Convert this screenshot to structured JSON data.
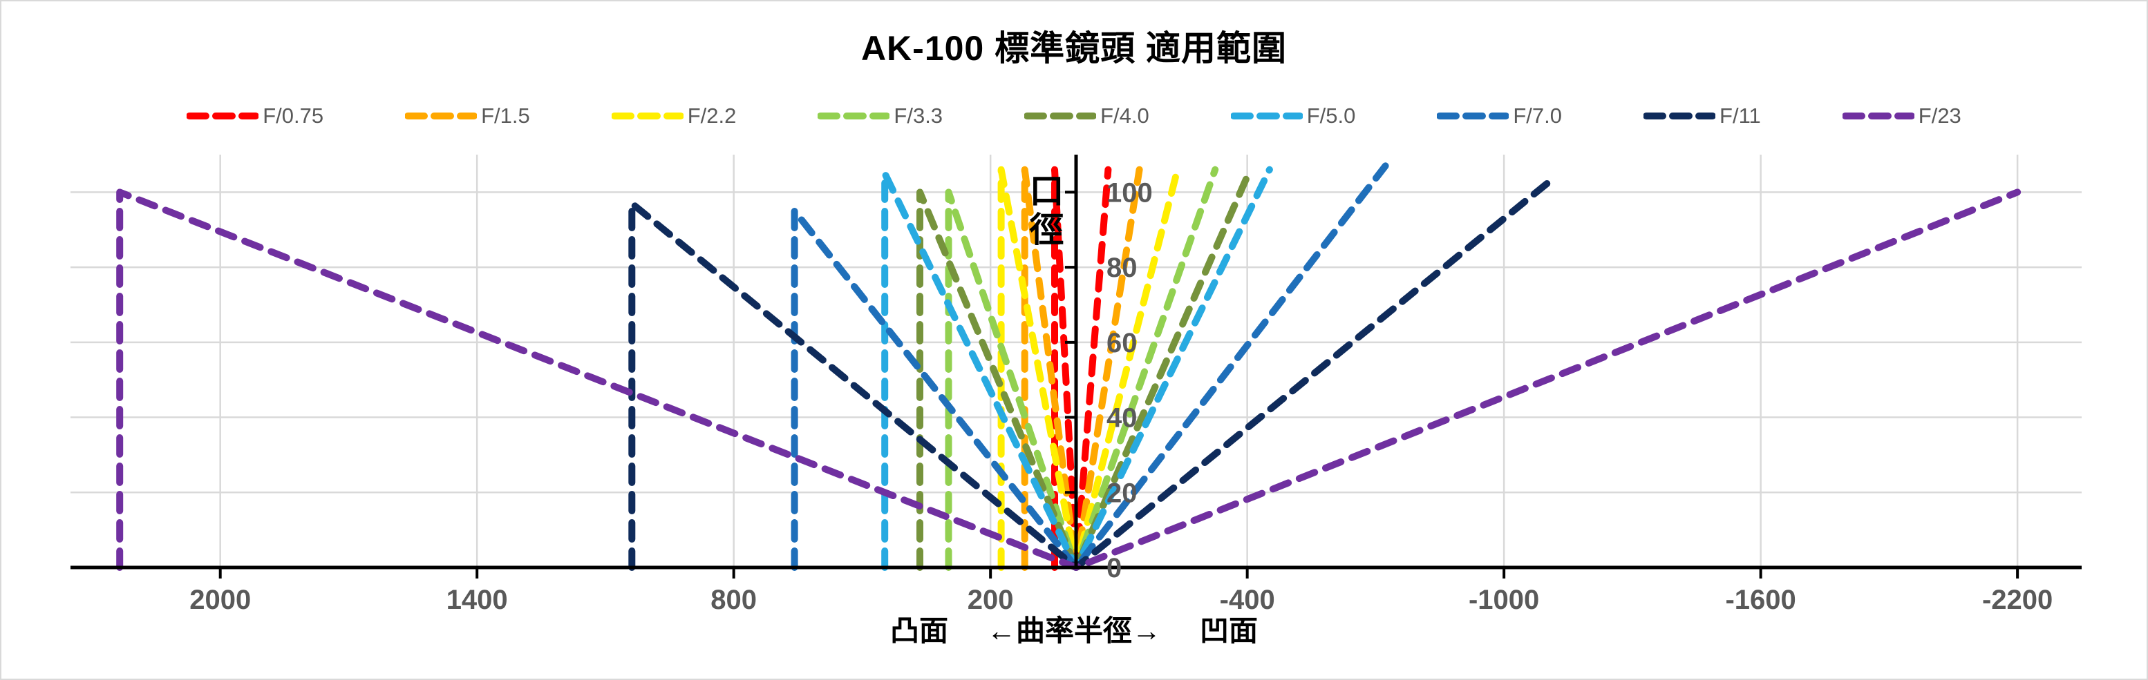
{
  "title": "AK-100 標準鏡頭 適用範圍",
  "y_axis_title": "口徑",
  "x_axis_caption": {
    "left": "凸面",
    "center": "←曲率半徑→",
    "right": "凹面"
  },
  "colors": {
    "grid": "#d9d9d9",
    "axis": "#000000",
    "tick_text": "#595959",
    "background": "#ffffff"
  },
  "chart_data": {
    "type": "line",
    "title": "AK-100 標準鏡頭 適用範圍",
    "xlabel": "凸面 ←曲率半徑→ 凹面",
    "ylabel": "口徑",
    "x_axis": {
      "reversed": true,
      "range": [
        2350,
        -2350
      ],
      "tick_values": [
        2000,
        1400,
        800,
        200,
        -400,
        -1000,
        -1600,
        -2200
      ],
      "tick_labels": [
        "2000",
        "1400",
        "800",
        "200",
        "-400",
        "-1000",
        "-1600",
        "-2200"
      ]
    },
    "y_axis": {
      "range": [
        0,
        110
      ],
      "tick_values": [
        0,
        20,
        40,
        60,
        80,
        100
      ],
      "tick_labels": [
        "0",
        "20",
        "40",
        "60",
        "80",
        "100"
      ]
    },
    "grid": true,
    "legend_position": "top",
    "line_style": "dashed",
    "series": [
      {
        "name": "F/0.75",
        "color": "#ff0000",
        "points": [
          [
            50,
            0
          ],
          [
            50,
            106
          ],
          [
            0,
            0
          ],
          [
            -75,
            106
          ]
        ]
      },
      {
        "name": "F/1.5",
        "color": "#ffa800",
        "points": [
          [
            120,
            0
          ],
          [
            120,
            106
          ],
          [
            0,
            0
          ],
          [
            -148,
            106
          ]
        ]
      },
      {
        "name": "F/2.2",
        "color": "#ffee00",
        "points": [
          [
            175,
            0
          ],
          [
            175,
            106
          ],
          [
            0,
            0
          ],
          [
            -237,
            106
          ]
        ]
      },
      {
        "name": "F/3.3",
        "color": "#92d050",
        "points": [
          [
            298,
            0
          ],
          [
            298,
            100
          ],
          [
            0,
            0
          ],
          [
            -325,
            106
          ]
        ]
      },
      {
        "name": "F/4.0",
        "color": "#76933c",
        "points": [
          [
            365,
            0
          ],
          [
            365,
            100
          ],
          [
            0,
            0
          ],
          [
            -407,
            106
          ]
        ]
      },
      {
        "name": "F/5.0",
        "color": "#27aae1",
        "points": [
          [
            447,
            0
          ],
          [
            447,
            105
          ],
          [
            0,
            0
          ],
          [
            -452,
            106
          ]
        ]
      },
      {
        "name": "F/7.0",
        "color": "#1f6fba",
        "points": [
          [
            658,
            0
          ],
          [
            658,
            95
          ],
          [
            0,
            0
          ],
          [
            -723,
            107
          ]
        ]
      },
      {
        "name": "F/11",
        "color": "#0f2b5b",
        "points": [
          [
            1038,
            0
          ],
          [
            1038,
            97
          ],
          [
            0,
            0
          ],
          [
            -1108,
            103
          ]
        ]
      },
      {
        "name": "F/23",
        "color": "#7030a0",
        "points": [
          [
            2235,
            0
          ],
          [
            2235,
            100
          ],
          [
            0,
            0
          ],
          [
            -2200,
            100
          ]
        ]
      }
    ]
  }
}
